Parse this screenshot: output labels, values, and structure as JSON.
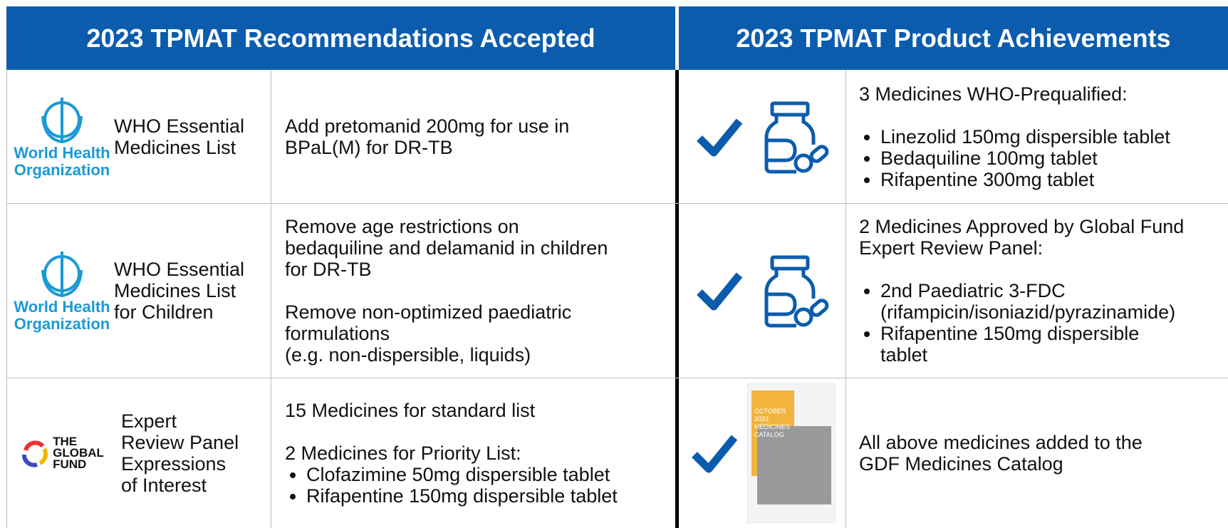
{
  "left_header": "2023 TPMAT Recommendations Accepted",
  "right_header": "2023 TPMAT Product Achievements",
  "recommendations": [
    {
      "logo": [
        "World Health",
        "Organization"
      ],
      "name": [
        "WHO Essential",
        "Medicines List"
      ],
      "paragraphs": [
        [
          "Add pretomanid 200mg for use in",
          "BPaL(M) for DR-TB"
        ]
      ],
      "bullets": []
    },
    {
      "logo": [
        "World Health",
        "Organization"
      ],
      "name": [
        "WHO Essential",
        "Medicines List",
        "for Children"
      ],
      "paragraphs": [
        [
          "Remove age restrictions on",
          "bedaquiline and delamanid in children",
          "for DR-TB"
        ],
        [
          "Remove non-optimized paediatric",
          "formulations",
          "(e.g. non-dispersible, liquids)"
        ]
      ],
      "bullets": []
    },
    {
      "logo": [
        "THE",
        "GLOBAL",
        "FUND"
      ],
      "name": [
        "Expert",
        "Review Panel",
        "Expressions",
        "of Interest"
      ],
      "paragraphs": [
        [
          "15 Medicines for standard list"
        ],
        [
          "2 Medicines for Priority List:"
        ]
      ],
      "bullets": [
        [
          "Clofazimine 50mg dispersible tablet"
        ],
        [
          "Rifapentine 150mg dispersible tablet"
        ]
      ]
    }
  ],
  "achievements": [
    {
      "heading": [
        "3 Medicines WHO-Prequalified:"
      ],
      "bullets": [
        [
          "Linezolid 150mg dispersible tablet"
        ],
        [
          "Bedaquiline 100mg tablet"
        ],
        [
          "Rifapentine 300mg tablet"
        ]
      ]
    },
    {
      "heading": [
        "2 Medicines Approved by Global Fund",
        "Expert Review Panel:"
      ],
      "bullets": [
        [
          "2nd Paediatric 3-FDC",
          "(rifampicin/isoniazid/pyrazinamide)"
        ],
        [
          "Rifapentine 150mg dispersible",
          "tablet"
        ]
      ]
    },
    {
      "heading": [
        "All above medicines added to the",
        "GDF Medicines Catalog"
      ],
      "bullets": []
    }
  ],
  "catalog_cover": [
    "OCTOBER",
    "2023",
    "MEDICINES",
    "CATALOG"
  ]
}
